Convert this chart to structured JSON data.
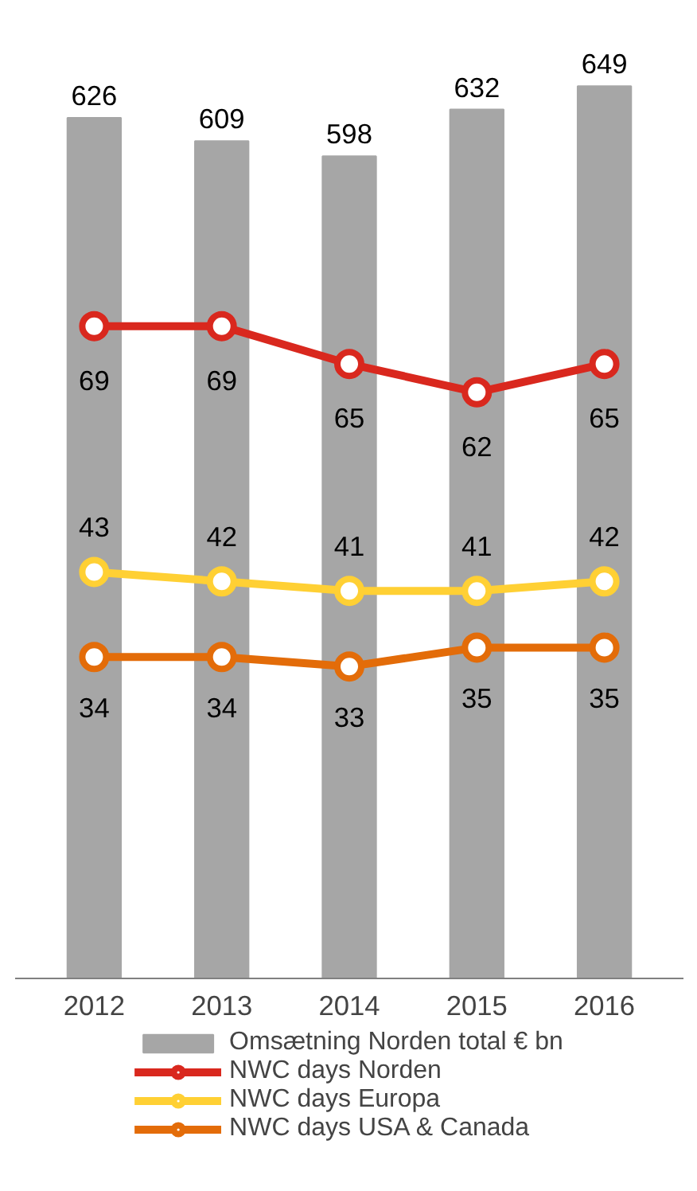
{
  "chart_data": {
    "type": "bar",
    "categories": [
      "2012",
      "2013",
      "2014",
      "2015",
      "2016"
    ],
    "series": [
      {
        "name": "Omsætning Norden total € bn",
        "color": "#a6a6a6",
        "values": [
          626,
          609,
          598,
          632,
          649
        ]
      },
      {
        "name": "NWC days Norden",
        "type": "line",
        "axis": "y2",
        "color": "#d9281e",
        "values": [
          69,
          69,
          65,
          62,
          65
        ]
      },
      {
        "name": "NWC days Europa",
        "type": "line",
        "axis": "y2",
        "color": "#ffd034",
        "values": [
          43,
          42,
          41,
          41,
          42
        ]
      },
      {
        "name": "NWC days USA & Canada",
        "type": "line",
        "axis": "y2",
        "color": "#e36c09",
        "values": [
          34,
          34,
          33,
          35,
          35
        ]
      }
    ],
    "tick_labels": "x",
    "data_labels": true,
    "marker": "circle",
    "line_style": "solid",
    "legend": "bottom"
  }
}
